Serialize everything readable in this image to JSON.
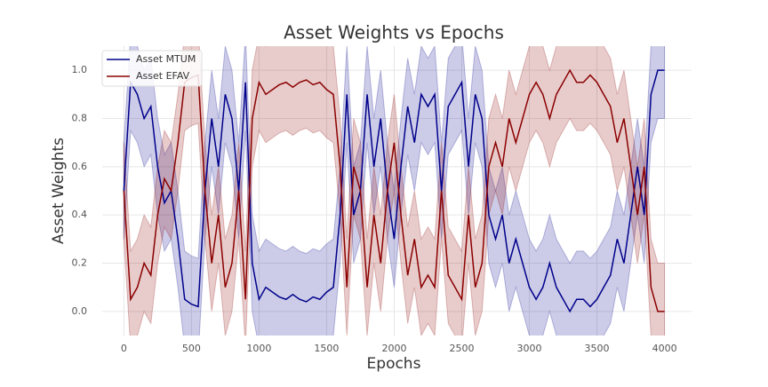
{
  "chart_data": {
    "type": "line",
    "title": "Asset Weights vs Epochs",
    "xlabel": "Epochs",
    "ylabel": "Asset Weights",
    "x": [
      0,
      50,
      100,
      150,
      200,
      250,
      300,
      350,
      400,
      450,
      500,
      550,
      600,
      650,
      700,
      750,
      800,
      850,
      900,
      950,
      1000,
      1050,
      1100,
      1150,
      1200,
      1250,
      1300,
      1350,
      1400,
      1450,
      1500,
      1550,
      1600,
      1650,
      1700,
      1750,
      1800,
      1850,
      1900,
      1950,
      2000,
      2050,
      2100,
      2150,
      2200,
      2250,
      2300,
      2350,
      2400,
      2450,
      2500,
      2550,
      2600,
      2650,
      2700,
      2750,
      2800,
      2850,
      2900,
      2950,
      3000,
      3050,
      3100,
      3150,
      3200,
      3250,
      3300,
      3350,
      3400,
      3450,
      3500,
      3550,
      3600,
      3650,
      3700,
      3750,
      3800,
      3850,
      3900,
      3950,
      4000
    ],
    "series": [
      {
        "name": "Asset MTUM",
        "color": "#00008b",
        "band": 0.2,
        "values": [
          0.5,
          0.95,
          0.9,
          0.8,
          0.85,
          0.6,
          0.45,
          0.5,
          0.3,
          0.05,
          0.03,
          0.02,
          0.5,
          0.8,
          0.6,
          0.9,
          0.8,
          0.5,
          0.95,
          0.2,
          0.05,
          0.1,
          0.08,
          0.06,
          0.05,
          0.07,
          0.05,
          0.04,
          0.06,
          0.05,
          0.08,
          0.1,
          0.4,
          0.9,
          0.4,
          0.5,
          0.9,
          0.6,
          0.8,
          0.5,
          0.3,
          0.6,
          0.85,
          0.7,
          0.9,
          0.85,
          0.9,
          0.5,
          0.85,
          0.9,
          0.95,
          0.6,
          0.9,
          0.8,
          0.4,
          0.3,
          0.4,
          0.2,
          0.3,
          0.2,
          0.1,
          0.05,
          0.1,
          0.2,
          0.1,
          0.05,
          0.0,
          0.05,
          0.05,
          0.02,
          0.05,
          0.1,
          0.15,
          0.3,
          0.2,
          0.4,
          0.6,
          0.4,
          0.9,
          1.0,
          1.0
        ]
      },
      {
        "name": "Asset EFAV",
        "color": "#8b0000",
        "band": 0.2,
        "values": [
          0.5,
          0.05,
          0.1,
          0.2,
          0.15,
          0.4,
          0.55,
          0.5,
          0.7,
          0.95,
          0.97,
          0.98,
          0.5,
          0.2,
          0.4,
          0.1,
          0.2,
          0.5,
          0.05,
          0.8,
          0.95,
          0.9,
          0.92,
          0.94,
          0.95,
          0.93,
          0.95,
          0.96,
          0.94,
          0.95,
          0.92,
          0.9,
          0.6,
          0.1,
          0.6,
          0.5,
          0.1,
          0.4,
          0.2,
          0.5,
          0.7,
          0.4,
          0.15,
          0.3,
          0.1,
          0.15,
          0.1,
          0.5,
          0.15,
          0.1,
          0.05,
          0.4,
          0.1,
          0.2,
          0.6,
          0.7,
          0.6,
          0.8,
          0.7,
          0.8,
          0.9,
          0.95,
          0.9,
          0.8,
          0.9,
          0.95,
          1.0,
          0.95,
          0.95,
          0.98,
          0.95,
          0.9,
          0.85,
          0.7,
          0.8,
          0.6,
          0.4,
          0.6,
          0.1,
          0.0,
          0.0
        ]
      }
    ],
    "xlim": [
      -160,
      4200
    ],
    "ylim": [
      -0.1,
      1.1
    ],
    "xticks": [
      0,
      500,
      1000,
      1500,
      2000,
      2500,
      3000,
      3500,
      4000
    ],
    "yticks": [
      {
        "value": 0,
        "label": "0.0"
      },
      0.2,
      0.4,
      0.6,
      0.8,
      {
        "value": 1,
        "label": "1.0"
      }
    ],
    "grid": true,
    "legend": "upper left"
  }
}
